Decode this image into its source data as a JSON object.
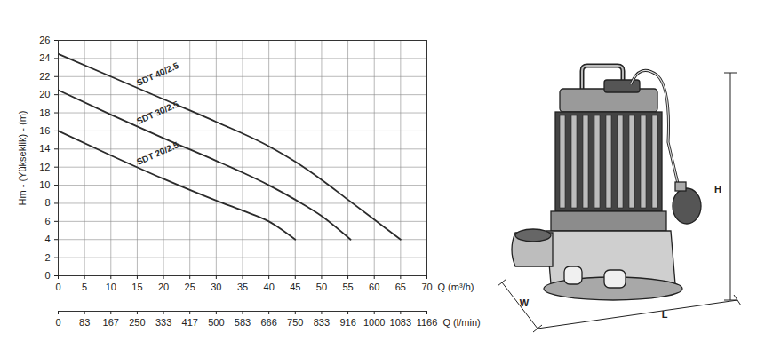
{
  "chart_data": {
    "type": "line",
    "xlabel": "Q (m³/h)",
    "ylabel": "Hm - (Yükseklik) - (m)",
    "xlim": [
      0,
      70
    ],
    "xticks": [
      0,
      5,
      10,
      15,
      20,
      25,
      30,
      35,
      40,
      45,
      50,
      55,
      60,
      65,
      70
    ],
    "ylim": [
      0,
      26
    ],
    "yticks": [
      0,
      2,
      4,
      6,
      8,
      10,
      12,
      14,
      16,
      18,
      20,
      22,
      24,
      26
    ],
    "x2label": "Q (l/min)",
    "x2ticks": [
      {
        "value": 0,
        "label": "0"
      },
      {
        "value": 5,
        "label": "83"
      },
      {
        "value": 10,
        "label": "167"
      },
      {
        "value": 15,
        "label": "250"
      },
      {
        "value": 20,
        "label": "333"
      },
      {
        "value": 25,
        "label": "417"
      },
      {
        "value": 30,
        "label": "500"
      },
      {
        "value": 35,
        "label": "583"
      },
      {
        "value": 40,
        "label": "666"
      },
      {
        "value": 45,
        "label": "750"
      },
      {
        "value": 50,
        "label": "833"
      },
      {
        "value": 55,
        "label": "916"
      },
      {
        "value": 60,
        "label": "1000"
      },
      {
        "value": 65,
        "label": "1083"
      },
      {
        "value": 70,
        "label": "1166"
      }
    ],
    "grid": true,
    "series": [
      {
        "name": "SDT 40/2.5",
        "color": "#2b2b2b",
        "x": [
          0,
          10,
          20,
          30,
          40,
          45,
          50,
          55,
          60,
          65
        ],
        "values": [
          24.5,
          22,
          19.5,
          17,
          14.3,
          12.6,
          10.6,
          8.4,
          6.2,
          4
        ]
      },
      {
        "name": "SDT 30/2.5",
        "color": "#2b2b2b",
        "x": [
          0,
          10,
          20,
          30,
          35,
          40,
          45,
          50,
          55.5
        ],
        "values": [
          20.5,
          17.8,
          15.2,
          12.7,
          11.4,
          10,
          8.4,
          6.6,
          4
        ]
      },
      {
        "name": "SDT 20/2.5",
        "color": "#2b2b2b",
        "x": [
          0,
          10,
          20,
          30,
          35,
          40,
          45
        ],
        "values": [
          16,
          13.3,
          10.7,
          8.3,
          7.2,
          6,
          4
        ]
      }
    ]
  },
  "drawing": {
    "labels": [
      "H",
      "W",
      "L"
    ]
  }
}
